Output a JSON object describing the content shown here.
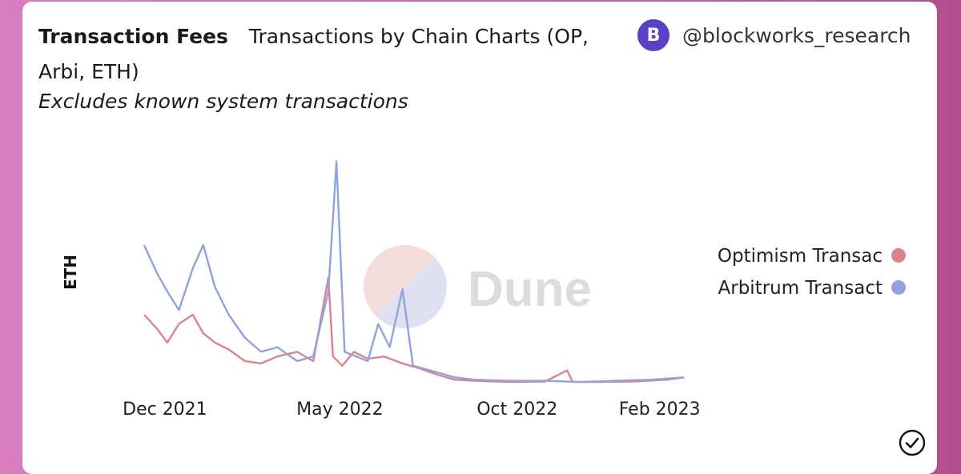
{
  "header": {
    "title": "Transaction Fees",
    "chart_name_line1": "Transactions by Chain Charts (OP,",
    "chart_name_line2": "Arbi, ETH)",
    "subtitle": "Excludes known system transactions",
    "author": "@blockworks_research",
    "avatar_letter": "B"
  },
  "watermark": "Dune",
  "colors": {
    "optimism": "#d9838f",
    "arbitrum": "#8fa3e0",
    "avatar": "#5b3fc4"
  },
  "chart_data": {
    "type": "line",
    "title": "Transaction Fees",
    "subtitle": "Excludes known system transactions",
    "xlabel": "",
    "ylabel": "ETH",
    "x_ticks": [
      "Dec 2021",
      "May 2022",
      "Oct 2022",
      "Feb 2023"
    ],
    "x_range": [
      "2021-11-20",
      "2023-03-05"
    ],
    "y_ticks": [],
    "ylim": [
      0,
      100
    ],
    "grid": false,
    "legend_position": "right",
    "series": [
      {
        "name": "Optimism Transac",
        "color": "#d9838f",
        "points": [
          [
            "2021-11-20",
            30
          ],
          [
            "2021-12-01",
            24
          ],
          [
            "2021-12-10",
            18
          ],
          [
            "2021-12-20",
            26
          ],
          [
            "2022-01-01",
            30
          ],
          [
            "2022-01-10",
            22
          ],
          [
            "2022-01-20",
            18
          ],
          [
            "2022-02-01",
            15
          ],
          [
            "2022-02-15",
            10
          ],
          [
            "2022-03-01",
            9
          ],
          [
            "2022-03-15",
            12
          ],
          [
            "2022-04-01",
            14
          ],
          [
            "2022-04-15",
            10
          ],
          [
            "2022-04-28",
            46
          ],
          [
            "2022-05-02",
            12
          ],
          [
            "2022-05-10",
            8
          ],
          [
            "2022-05-20",
            14
          ],
          [
            "2022-06-01",
            11
          ],
          [
            "2022-06-15",
            12
          ],
          [
            "2022-07-01",
            9
          ],
          [
            "2022-07-15",
            7
          ],
          [
            "2022-08-01",
            4
          ],
          [
            "2022-08-15",
            2
          ],
          [
            "2022-09-01",
            1.5
          ],
          [
            "2022-10-01",
            1
          ],
          [
            "2022-11-01",
            1.2
          ],
          [
            "2022-11-20",
            6
          ],
          [
            "2022-11-25",
            1
          ],
          [
            "2022-12-15",
            1
          ],
          [
            "2023-01-15",
            1.2
          ],
          [
            "2023-02-15",
            2
          ],
          [
            "2023-03-01",
            3
          ]
        ]
      },
      {
        "name": "Arbitrum Transact",
        "color": "#8fa3e0",
        "points": [
          [
            "2021-11-20",
            60
          ],
          [
            "2021-12-01",
            48
          ],
          [
            "2021-12-10",
            40
          ],
          [
            "2021-12-20",
            32
          ],
          [
            "2022-01-01",
            50
          ],
          [
            "2022-01-10",
            60
          ],
          [
            "2022-01-20",
            42
          ],
          [
            "2022-02-01",
            30
          ],
          [
            "2022-02-15",
            20
          ],
          [
            "2022-03-01",
            14
          ],
          [
            "2022-03-15",
            16
          ],
          [
            "2022-04-01",
            10
          ],
          [
            "2022-04-15",
            12
          ],
          [
            "2022-04-28",
            40
          ],
          [
            "2022-05-05",
            96
          ],
          [
            "2022-05-12",
            14
          ],
          [
            "2022-06-01",
            10
          ],
          [
            "2022-06-10",
            26
          ],
          [
            "2022-06-20",
            16
          ],
          [
            "2022-07-01",
            41
          ],
          [
            "2022-07-10",
            8
          ],
          [
            "2022-08-01",
            5
          ],
          [
            "2022-08-15",
            3
          ],
          [
            "2022-09-01",
            2
          ],
          [
            "2022-10-01",
            1.5
          ],
          [
            "2022-11-01",
            1.5
          ],
          [
            "2022-12-01",
            1
          ],
          [
            "2023-01-01",
            1.5
          ],
          [
            "2023-02-01",
            2
          ],
          [
            "2023-03-01",
            3
          ]
        ]
      }
    ]
  }
}
